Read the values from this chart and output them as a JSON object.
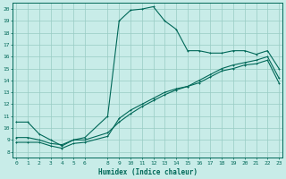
{
  "xlabel": "Humidex (Indice chaleur)",
  "bg_color": "#c8ece8",
  "grid_color": "#98ccc4",
  "line_color": "#006858",
  "xlim": [
    -0.3,
    23.3
  ],
  "ylim": [
    7.5,
    20.5
  ],
  "x_ticks": [
    0,
    1,
    2,
    3,
    4,
    5,
    6,
    8,
    9,
    10,
    11,
    12,
    13,
    14,
    15,
    16,
    17,
    18,
    19,
    20,
    21,
    22,
    23
  ],
  "x_tick_labels": [
    "0",
    "1",
    "2",
    "3",
    "4",
    "5",
    "6",
    "8",
    "9",
    "10",
    "11",
    "12",
    "13",
    "14",
    "15",
    "16",
    "17",
    "18",
    "19",
    "20",
    "21",
    "22",
    "23"
  ],
  "y_ticks": [
    8,
    9,
    10,
    11,
    12,
    13,
    14,
    15,
    16,
    17,
    18,
    19,
    20
  ],
  "line1_x": [
    0,
    1,
    2,
    3,
    4,
    5,
    6,
    8,
    9,
    10,
    11,
    12,
    13,
    14,
    15,
    16,
    17,
    18,
    19,
    20,
    21,
    22,
    23
  ],
  "line1_y": [
    10.5,
    10.5,
    9.5,
    9.0,
    8.5,
    9.0,
    9.2,
    11.0,
    19.0,
    19.9,
    20.0,
    20.2,
    19.0,
    18.3,
    16.5,
    16.5,
    16.3,
    16.3,
    16.5,
    16.5,
    16.2,
    16.5,
    15.0
  ],
  "line2_x": [
    0,
    1,
    2,
    3,
    4,
    5,
    6,
    8,
    9,
    10,
    11,
    12,
    13,
    14,
    15,
    16,
    17,
    18,
    19,
    20,
    21,
    22,
    23
  ],
  "line2_y": [
    8.8,
    8.8,
    8.8,
    8.5,
    8.3,
    8.7,
    8.8,
    9.3,
    10.8,
    11.5,
    12.0,
    12.5,
    13.0,
    13.3,
    13.5,
    13.8,
    14.3,
    14.8,
    15.0,
    15.3,
    15.4,
    15.7,
    13.8
  ],
  "line3_x": [
    0,
    1,
    2,
    3,
    4,
    5,
    6,
    8,
    9,
    10,
    11,
    12,
    13,
    14,
    15,
    16,
    17,
    18,
    19,
    20,
    21,
    22,
    23
  ],
  "line3_y": [
    9.2,
    9.2,
    9.0,
    8.7,
    8.6,
    9.0,
    9.0,
    9.6,
    10.5,
    11.2,
    11.8,
    12.3,
    12.8,
    13.2,
    13.5,
    14.0,
    14.5,
    15.0,
    15.3,
    15.5,
    15.7,
    16.0,
    14.2
  ]
}
